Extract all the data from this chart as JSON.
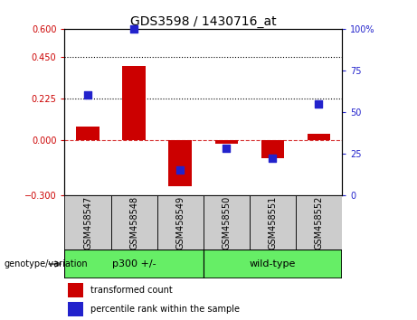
{
  "title": "GDS3598 / 1430716_at",
  "samples": [
    "GSM458547",
    "GSM458548",
    "GSM458549",
    "GSM458550",
    "GSM458551",
    "GSM458552"
  ],
  "transformed_count": [
    0.07,
    0.4,
    -0.25,
    -0.02,
    -0.1,
    0.03
  ],
  "percentile_rank": [
    60,
    100,
    15,
    28,
    22,
    55
  ],
  "ylim_left": [
    -0.3,
    0.6
  ],
  "ylim_right": [
    0,
    100
  ],
  "yticks_left": [
    -0.3,
    0,
    0.225,
    0.45,
    0.6
  ],
  "yticks_right": [
    0,
    25,
    50,
    75,
    100
  ],
  "hlines": [
    0.45,
    0.225
  ],
  "zero_line": 0.0,
  "bar_color": "#cc0000",
  "dot_color": "#2222cc",
  "bar_width": 0.5,
  "dot_size": 35,
  "group1_label": "p300 +/-",
  "group2_label": "wild-type",
  "group_color": "#66ee66",
  "group1_indices": [
    0,
    1,
    2
  ],
  "group2_indices": [
    3,
    4,
    5
  ],
  "genotype_label": "genotype/variation",
  "legend_bar_label": "transformed count",
  "legend_dot_label": "percentile rank within the sample",
  "left_tick_color": "#cc0000",
  "right_tick_color": "#2222cc",
  "bg_color": "#ffffff",
  "label_area_color": "#cccccc",
  "title_fontsize": 10,
  "tick_fontsize": 7,
  "label_fontsize": 7,
  "geno_fontsize": 8
}
